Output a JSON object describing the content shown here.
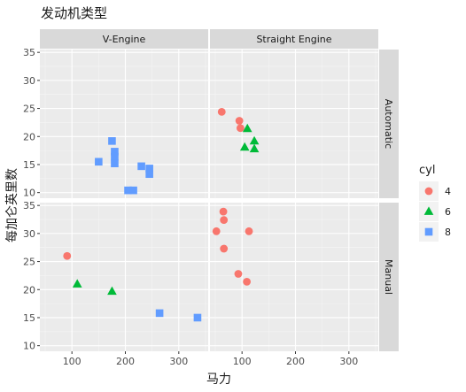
{
  "chart_data": {
    "type": "scatter",
    "title": "发动机类型",
    "xlabel": "马力",
    "ylabel": "每加仑英里数",
    "xlim": [
      40,
      355
    ],
    "ylim": [
      9,
      35.5
    ],
    "x_ticks": [
      100,
      200,
      300
    ],
    "y_ticks": [
      10,
      15,
      20,
      25,
      30,
      35
    ],
    "facet_cols": [
      {
        "key": "V",
        "label": "V-Engine"
      },
      {
        "key": "S",
        "label": "Straight Engine"
      }
    ],
    "facet_rows": [
      {
        "key": "A",
        "label": "Automatic"
      },
      {
        "key": "M",
        "label": "Manual"
      }
    ],
    "legend": {
      "title": "cyl",
      "position": "right",
      "entries": [
        {
          "label": "4",
          "color": "#F8766D",
          "shape": "circle"
        },
        {
          "label": "6",
          "color": "#00BA38",
          "shape": "triangle"
        },
        {
          "label": "8",
          "color": "#619CFF",
          "shape": "square"
        }
      ]
    },
    "points": [
      {
        "panel": "VA",
        "x": 150,
        "y": 15.5,
        "cyl": "8"
      },
      {
        "panel": "VA",
        "x": 175,
        "y": 19.2,
        "cyl": "8"
      },
      {
        "panel": "VA",
        "x": 180,
        "y": 17.3,
        "cyl": "8"
      },
      {
        "panel": "VA",
        "x": 180,
        "y": 16.4,
        "cyl": "8"
      },
      {
        "panel": "VA",
        "x": 180,
        "y": 15.2,
        "cyl": "8"
      },
      {
        "panel": "VA",
        "x": 205,
        "y": 10.4,
        "cyl": "8"
      },
      {
        "panel": "VA",
        "x": 215,
        "y": 10.4,
        "cyl": "8"
      },
      {
        "panel": "VA",
        "x": 230,
        "y": 14.7,
        "cyl": "8"
      },
      {
        "panel": "VA",
        "x": 245,
        "y": 14.3,
        "cyl": "8"
      },
      {
        "panel": "VA",
        "x": 245,
        "y": 13.3,
        "cyl": "8"
      },
      {
        "panel": "SA",
        "x": 62,
        "y": 24.4,
        "cyl": "4"
      },
      {
        "panel": "SA",
        "x": 95,
        "y": 22.8,
        "cyl": "4"
      },
      {
        "panel": "SA",
        "x": 97,
        "y": 21.5,
        "cyl": "4"
      },
      {
        "panel": "SA",
        "x": 110,
        "y": 21.4,
        "cyl": "6"
      },
      {
        "panel": "SA",
        "x": 105,
        "y": 18.1,
        "cyl": "6"
      },
      {
        "panel": "SA",
        "x": 123,
        "y": 19.2,
        "cyl": "6"
      },
      {
        "panel": "SA",
        "x": 123,
        "y": 17.8,
        "cyl": "6"
      },
      {
        "panel": "VM",
        "x": 91,
        "y": 26.0,
        "cyl": "4"
      },
      {
        "panel": "VM",
        "x": 110,
        "y": 21.0,
        "cyl": "6"
      },
      {
        "panel": "VM",
        "x": 175,
        "y": 19.7,
        "cyl": "6"
      },
      {
        "panel": "VM",
        "x": 264,
        "y": 15.8,
        "cyl": "8"
      },
      {
        "panel": "VM",
        "x": 335,
        "y": 15.0,
        "cyl": "8"
      },
      {
        "panel": "SM",
        "x": 52,
        "y": 30.4,
        "cyl": "4"
      },
      {
        "panel": "SM",
        "x": 65,
        "y": 33.9,
        "cyl": "4"
      },
      {
        "panel": "SM",
        "x": 66,
        "y": 32.4,
        "cyl": "4"
      },
      {
        "panel": "SM",
        "x": 66,
        "y": 27.3,
        "cyl": "4"
      },
      {
        "panel": "SM",
        "x": 113,
        "y": 30.4,
        "cyl": "4"
      },
      {
        "panel": "SM",
        "x": 93,
        "y": 22.8,
        "cyl": "4"
      },
      {
        "panel": "SM",
        "x": 109,
        "y": 21.4,
        "cyl": "4"
      }
    ]
  }
}
